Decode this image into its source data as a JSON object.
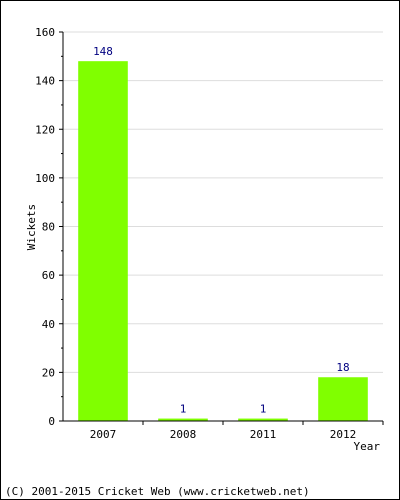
{
  "chart_data": {
    "type": "bar",
    "title": "",
    "xlabel": "Year",
    "ylabel": "Wickets",
    "categories": [
      "2007",
      "2008",
      "2011",
      "2012"
    ],
    "values": [
      148,
      1,
      1,
      18
    ],
    "data_labels": [
      "148",
      "1",
      "1",
      "18"
    ],
    "ylim": [
      0,
      160
    ],
    "y_ticks": [
      0,
      20,
      40,
      60,
      80,
      100,
      120,
      140,
      160
    ],
    "y_tick_labels": [
      "0",
      "20",
      "40",
      "60",
      "80",
      "100",
      "120",
      "140",
      "160"
    ],
    "grid": true,
    "legend": "none",
    "colors": {
      "bar": "#80ff00",
      "grid": "#dddddd",
      "axis": "#000000",
      "value_label": "#000080"
    }
  },
  "footer": {
    "copyright": "(C) 2001-2015 Cricket Web (www.cricketweb.net)"
  }
}
